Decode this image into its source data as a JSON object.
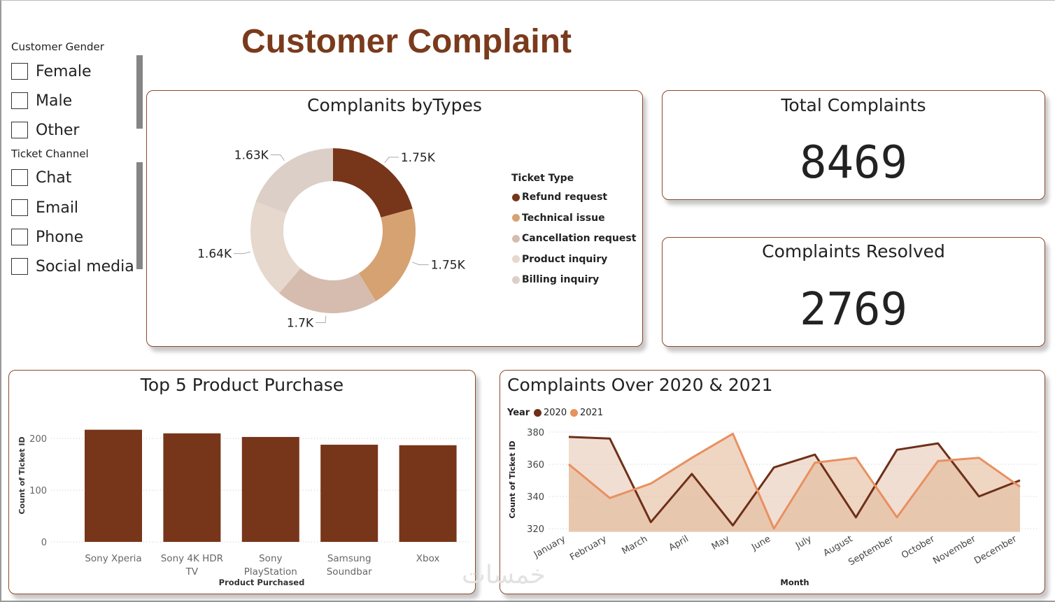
{
  "title": "Customer Complaint",
  "slicers": {
    "gender": {
      "title": "Customer Gender",
      "items": [
        "Female",
        "Male",
        "Other"
      ]
    },
    "channel": {
      "title": "Ticket Channel",
      "items": [
        "Chat",
        "Email",
        "Phone",
        "Social media"
      ]
    }
  },
  "kpis": {
    "total": {
      "label": "Total Complaints",
      "value": "8469"
    },
    "resolved": {
      "label": "Complaints Resolved",
      "value": "2769"
    }
  },
  "watermark": "خمسات",
  "chart_data": [
    {
      "type": "pie",
      "title": "Complanits byTypes",
      "legend_title": "Ticket Type",
      "legend_position": "right",
      "categories": [
        "Refund request",
        "Technical issue",
        "Cancellation request",
        "Product inquiry",
        "Billing inquiry"
      ],
      "values": [
        1752,
        1747,
        1695,
        1641,
        1634
      ],
      "labels": [
        "1.75K",
        "1.75K",
        "1.7K",
        "1.64K",
        "1.63K"
      ],
      "colors": [
        "#77351a",
        "#d6a272",
        "#d6bcae",
        "#e6d8cd",
        "#dbcfc7"
      ]
    },
    {
      "type": "bar",
      "title": "Top 5 Product Purchase",
      "xlabel": "Product Purchased",
      "ylabel": "Count of Ticket ID",
      "categories": [
        "Sony Xperia",
        "Sony 4K HDR TV",
        "Sony PlayStation Soundbar",
        "Samsung Soundbar",
        "Xbox"
      ],
      "category_lines": [
        [
          "Sony Xperia"
        ],
        [
          "Sony 4K HDR",
          "TV"
        ],
        [
          "Sony",
          "PlayStation"
        ],
        [
          "Samsung",
          "Soundbar"
        ],
        [
          "Xbox"
        ]
      ],
      "values": [
        217,
        210,
        203,
        188,
        187
      ],
      "ylim": [
        0,
        230
      ],
      "yticks": [
        0,
        100,
        200
      ],
      "color": "#77351a",
      "grid": true
    },
    {
      "type": "area",
      "title": "Complaints Over 2020 & 2021",
      "legend_title": "Year",
      "legend_position": "top-left",
      "xlabel": "Month",
      "ylabel": "Count of Ticket ID",
      "categories": [
        "January",
        "February",
        "March",
        "April",
        "May",
        "June",
        "July",
        "August",
        "September",
        "October",
        "November",
        "December"
      ],
      "series": [
        {
          "name": "2020",
          "color": "#6e3018",
          "values": [
            377,
            376,
            324,
            354,
            322,
            358,
            366,
            327,
            369,
            373,
            340,
            350
          ]
        },
        {
          "name": "2021",
          "color": "#e89060",
          "values": [
            360,
            339,
            348,
            364,
            379,
            320,
            361,
            364,
            327,
            362,
            364,
            346
          ]
        }
      ],
      "ylim": [
        318,
        382
      ],
      "yticks": [
        320,
        340,
        360,
        380
      ],
      "grid": true
    }
  ]
}
